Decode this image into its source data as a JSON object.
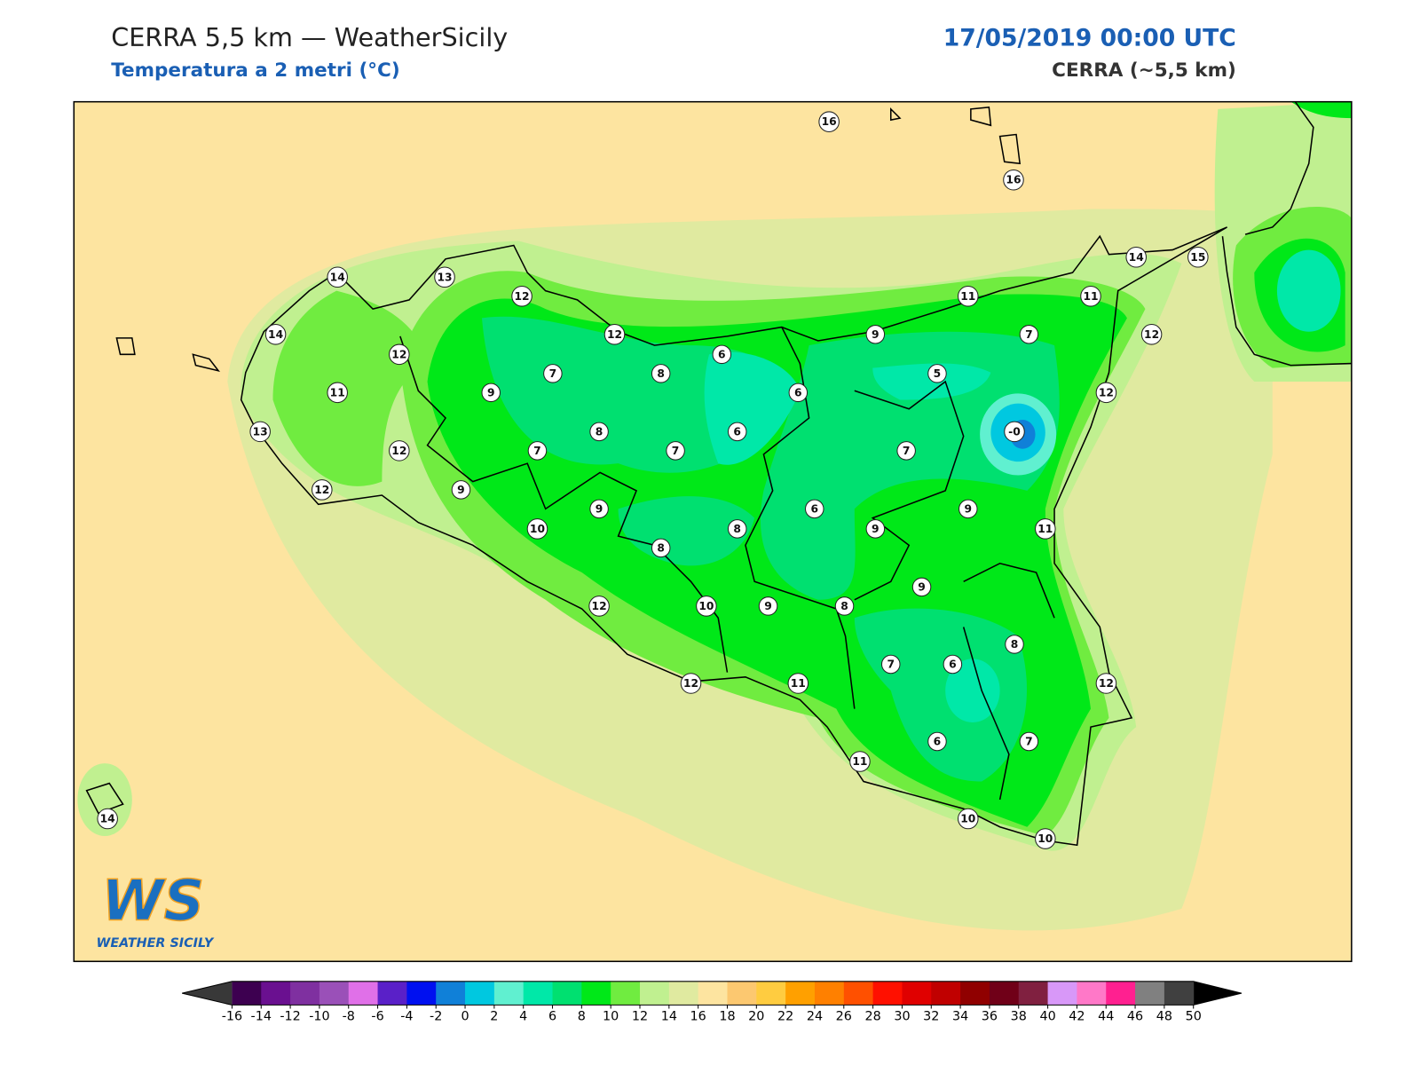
{
  "header": {
    "title": "CERRA 5,5 km — WeatherSicily",
    "subtitle": "Temperatura a 2 metri (°C)",
    "date": "17/05/2019 00:00 UTC",
    "source": "CERRA (~5,5 km)"
  },
  "stations": [
    16,
    16,
    14,
    13,
    12,
    14,
    12,
    12,
    9,
    11,
    11,
    14,
    15,
    12,
    7,
    6,
    7,
    8,
    5,
    11,
    9,
    6,
    12,
    13,
    8,
    6,
    {
      "value": 0,
      "label": "-0"
    },
    12,
    7,
    7,
    7,
    12,
    9,
    9,
    6,
    9,
    10,
    8,
    9,
    11,
    8,
    9,
    12,
    10,
    9,
    8,
    8,
    7,
    6,
    12,
    11,
    12,
    6,
    7,
    11,
    10,
    10,
    14
  ],
  "logo": {
    "mark": "WS",
    "name": "WEATHER SICILY"
  },
  "colorbar": {
    "ticks": [
      -16,
      -14,
      -12,
      -10,
      -8,
      -6,
      -4,
      -2,
      0,
      2,
      4,
      6,
      8,
      10,
      12,
      14,
      16,
      18,
      20,
      22,
      24,
      26,
      28,
      30,
      32,
      34,
      36,
      38,
      40,
      42,
      44,
      46,
      48,
      50
    ],
    "colors": [
      "#3d0050",
      "#6a1090",
      "#7f30a0",
      "#9a50b8",
      "#e070e8",
      "#5a20c8",
      "#0010f0",
      "#1080d8",
      "#00c8e0",
      "#60f0d0",
      "#00e8a8",
      "#00e070",
      "#00e818",
      "#70ec40",
      "#c0f090",
      "#e0eaa0",
      "#fde4a0",
      "#fcc870",
      "#ffcc40",
      "#ffa000",
      "#ff8000",
      "#ff5000",
      "#ff1000",
      "#e00000",
      "#c00000",
      "#900000",
      "#700018",
      "#802040",
      "#d898f8",
      "#ff78c8",
      "#ff2090",
      "#808080",
      "#404040"
    ],
    "under_color": "#383838",
    "over_color": "#000000"
  }
}
